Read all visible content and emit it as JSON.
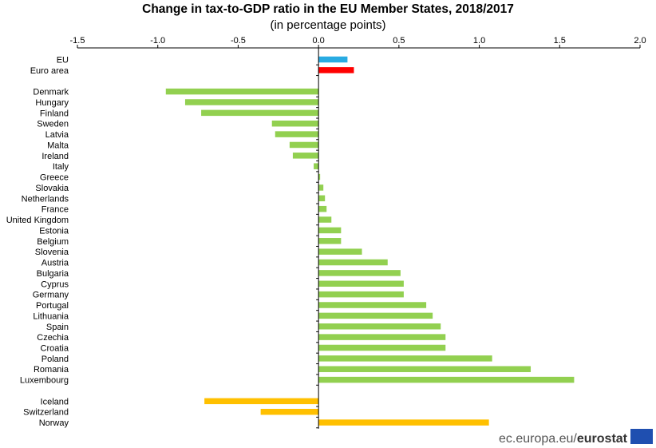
{
  "chart_data": {
    "type": "bar",
    "orientation": "horizontal",
    "title": "Change in tax-to-GDP ratio in the EU Member States, 2018/2017",
    "subtitle": "(in percentage points)",
    "xlim": [
      -1.5,
      2.0
    ],
    "ticks": [
      -1.5,
      -1.0,
      -0.5,
      0.0,
      0.5,
      1.0,
      1.5,
      2.0
    ],
    "tick_labels": [
      "-1.5",
      "-1.0",
      "-0.5",
      "0.0",
      "0.5",
      "1.0",
      "1.5",
      "2.0"
    ],
    "axis_position": "top",
    "grid": false,
    "groups": [
      {
        "name": "aggregates",
        "bars": [
          {
            "label": "EU",
            "value": 0.18,
            "color": "#29abe2"
          },
          {
            "label": "Euro area",
            "value": 0.22,
            "color": "#ff0000"
          }
        ]
      },
      {
        "name": "member_states",
        "bars": [
          {
            "label": "Denmark",
            "value": -0.95,
            "color": "#92d050"
          },
          {
            "label": "Hungary",
            "value": -0.83,
            "color": "#92d050"
          },
          {
            "label": "Finland",
            "value": -0.73,
            "color": "#92d050"
          },
          {
            "label": "Sweden",
            "value": -0.29,
            "color": "#92d050"
          },
          {
            "label": "Latvia",
            "value": -0.27,
            "color": "#92d050"
          },
          {
            "label": "Malta",
            "value": -0.18,
            "color": "#92d050"
          },
          {
            "label": "Ireland",
            "value": -0.16,
            "color": "#92d050"
          },
          {
            "label": "Italy",
            "value": -0.03,
            "color": "#92d050"
          },
          {
            "label": "Greece",
            "value": 0.01,
            "color": "#92d050"
          },
          {
            "label": "Slovakia",
            "value": 0.03,
            "color": "#92d050"
          },
          {
            "label": "Netherlands",
            "value": 0.04,
            "color": "#92d050"
          },
          {
            "label": "France",
            "value": 0.05,
            "color": "#92d050"
          },
          {
            "label": "United Kingdom",
            "value": 0.08,
            "color": "#92d050"
          },
          {
            "label": "Estonia",
            "value": 0.14,
            "color": "#92d050"
          },
          {
            "label": "Belgium",
            "value": 0.14,
            "color": "#92d050"
          },
          {
            "label": "Slovenia",
            "value": 0.27,
            "color": "#92d050"
          },
          {
            "label": "Austria",
            "value": 0.43,
            "color": "#92d050"
          },
          {
            "label": "Bulgaria",
            "value": 0.51,
            "color": "#92d050"
          },
          {
            "label": "Cyprus",
            "value": 0.53,
            "color": "#92d050"
          },
          {
            "label": "Germany",
            "value": 0.53,
            "color": "#92d050"
          },
          {
            "label": "Portugal",
            "value": 0.67,
            "color": "#92d050"
          },
          {
            "label": "Lithuania",
            "value": 0.71,
            "color": "#92d050"
          },
          {
            "label": "Spain",
            "value": 0.76,
            "color": "#92d050"
          },
          {
            "label": "Czechia",
            "value": 0.79,
            "color": "#92d050"
          },
          {
            "label": "Croatia",
            "value": 0.79,
            "color": "#92d050"
          },
          {
            "label": "Poland",
            "value": 1.08,
            "color": "#92d050"
          },
          {
            "label": "Romania",
            "value": 1.32,
            "color": "#92d050"
          },
          {
            "label": "Luxembourg",
            "value": 1.59,
            "color": "#92d050"
          }
        ]
      },
      {
        "name": "efta",
        "bars": [
          {
            "label": "Iceland",
            "value": -0.71,
            "color": "#ffc000"
          },
          {
            "label": "Switzerland",
            "value": -0.36,
            "color": "#ffc000"
          },
          {
            "label": "Norway",
            "value": 1.06,
            "color": "#ffc000"
          }
        ]
      }
    ]
  },
  "footer": {
    "source_text": "ec.europa.eu/",
    "brand_text": "eurostat"
  },
  "colors": {
    "axis": "#000000",
    "eu_flag": "#1f4fb0"
  }
}
